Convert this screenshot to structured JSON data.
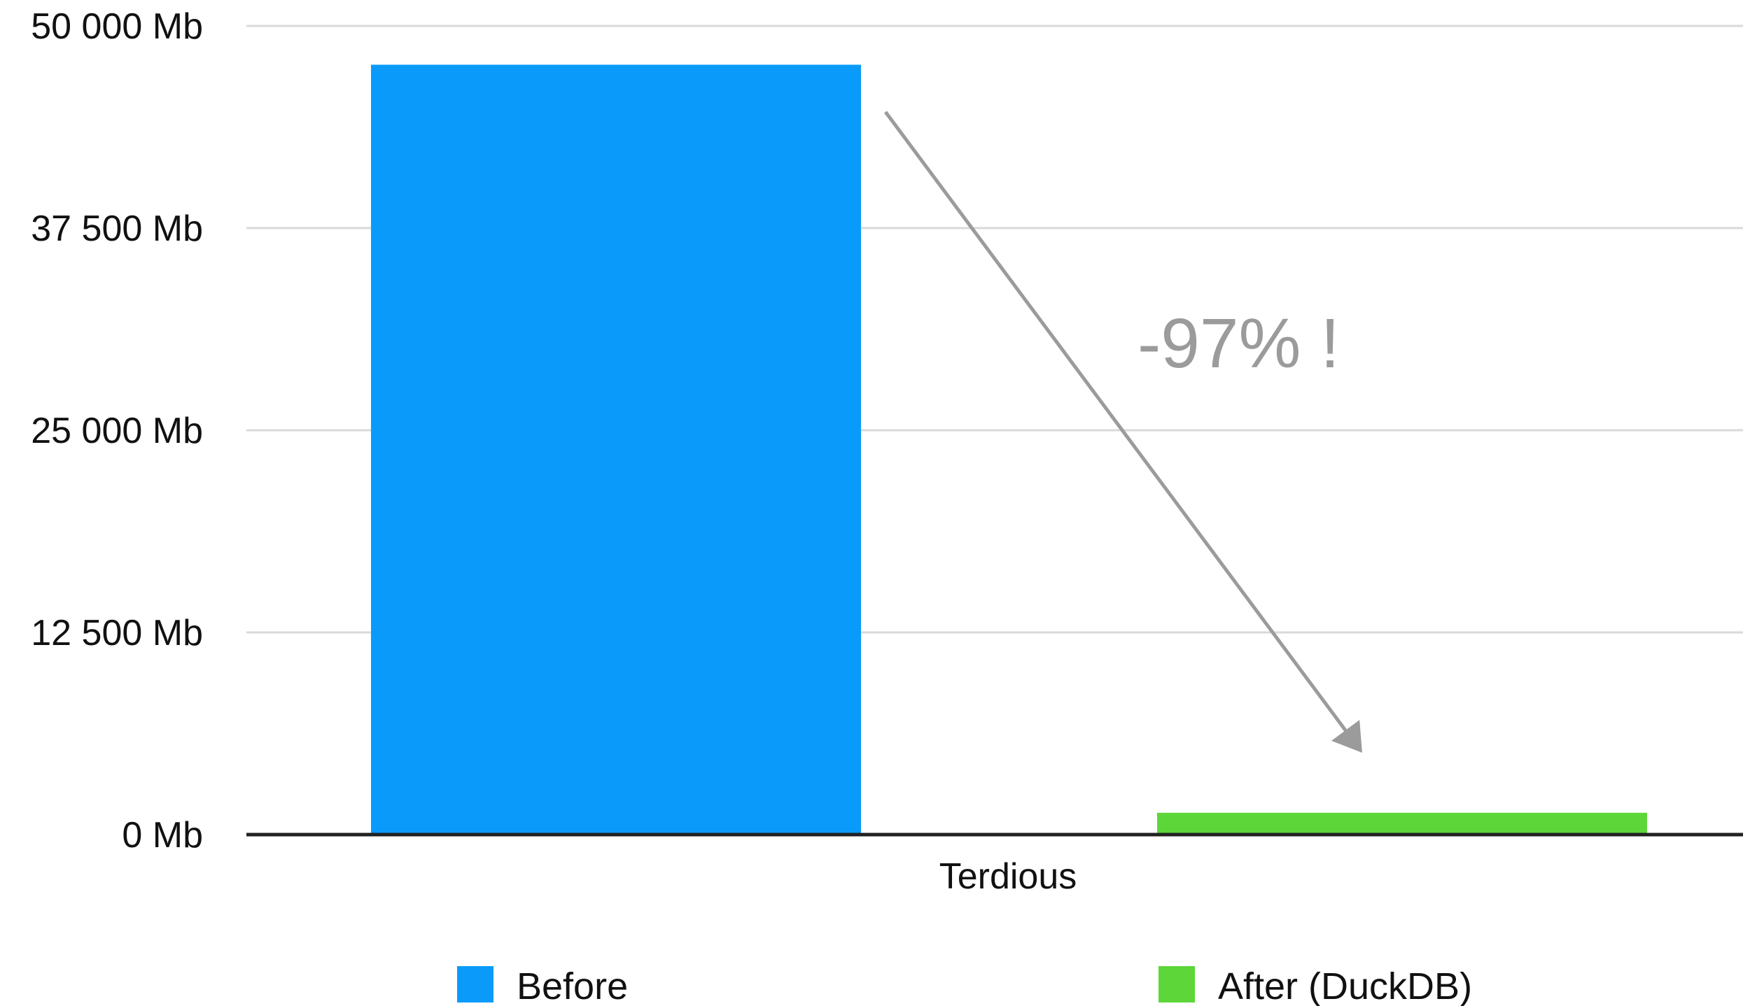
{
  "chart_data": {
    "type": "bar",
    "categories": [
      "Terdious"
    ],
    "series": [
      {
        "name": "Before",
        "values": [
          47600
        ],
        "color": "#0A9BFA"
      },
      {
        "name": "After (DuckDB)",
        "values": [
          1350
        ],
        "color": "#5DD63A"
      }
    ],
    "yticks": [
      "0 Mb",
      "12 500 Mb",
      "25 000 Mb",
      "37 500 Mb",
      "50 000 Mb"
    ],
    "ytick_values": [
      0,
      12500,
      25000,
      37500,
      50000
    ],
    "ylim": [
      0,
      50000
    ],
    "grid": true,
    "legend": "bottom",
    "annotation": {
      "text": "-97% !",
      "arrow": "from Before bar top down to After (DuckDB) bar"
    },
    "colors": {
      "grid": "#d9d9d9",
      "axis": "#222222",
      "annotation": "#9b9b9b"
    }
  }
}
